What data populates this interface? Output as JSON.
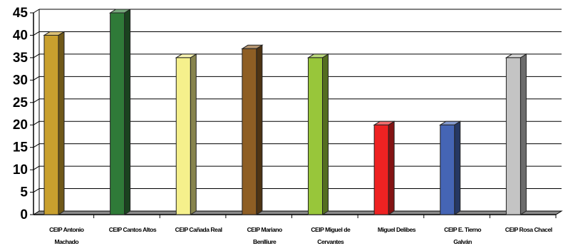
{
  "chart_data": {
    "type": "bar",
    "style": "3d-column",
    "categories": [
      [
        "CEIP Antonio",
        "Machado"
      ],
      [
        "CEIP Cantos Altos"
      ],
      [
        "CEIP Cañada Real"
      ],
      [
        "CEIP Mariano",
        "Benlliure"
      ],
      [
        "CEIP Miguel de",
        "Cervantes"
      ],
      [
        "Miguel Delibes"
      ],
      [
        "CEIP E. Tierno",
        "Galván"
      ],
      [
        "CEIP Rosa Chacel"
      ]
    ],
    "values": [
      40,
      45,
      35,
      37,
      35,
      20,
      20,
      35
    ],
    "colors": [
      "#C9A02E",
      "#2F7A38",
      "#F5F08C",
      "#8E5E24",
      "#98C63A",
      "#EE2222",
      "#4565B5",
      "#C4C4C4"
    ],
    "ylim": [
      0,
      45
    ],
    "yticks": [
      0,
      5,
      10,
      15,
      20,
      25,
      30,
      35,
      40,
      45
    ],
    "grid": true,
    "legend": "none",
    "title": "",
    "xlabel": "",
    "ylabel": ""
  }
}
